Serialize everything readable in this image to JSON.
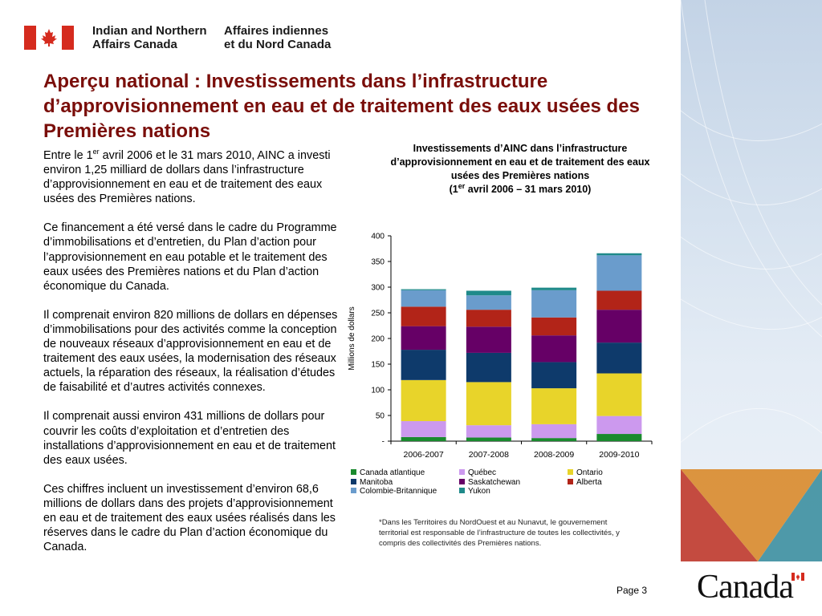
{
  "header": {
    "dept_en_line1": "Indian and Northern",
    "dept_en_line2": "Affairs Canada",
    "dept_fr_line1": "Affaires indiennes",
    "dept_fr_line2": "et du Nord Canada"
  },
  "title": "Aperçu national : Investissements dans l’infrastructure d’approvisionnement en eau et de traitement des eaux usées des Premières nations",
  "body": {
    "p1_a": "Entre le 1",
    "p1_sup": "er",
    "p1_b": " avril 2006 et le 31 mars 2010, AINC a investi environ 1,25 milliard de dollars dans l’infrastructure d’approvisionnement en eau et de traitement des eaux usées des Premières nations.",
    "p2": "Ce financement a été versé dans le cadre du Programme d’immobilisations et d’entretien, du Plan d’action pour l’approvisionnement en eau potable et le traitement des eaux usées des Premières nations et du Plan d’action économique du Canada.",
    "p3": "Il comprenait environ 820 millions de dollars en dépenses d’immobilisations pour des activités comme la conception de nouveaux réseaux d’approvisionnement en eau et de traitement des eaux usées, la modernisation des réseaux actuels, la réparation des réseaux, la réalisation d’études de faisabilité et d’autres activités connexes.",
    "p4": "Il comprenait aussi environ 431 millions de dollars pour couvrir les coûts d’exploitation et d’entretien des installations d’approvisionnement en eau et de traitement des eaux usées.",
    "p5": "Ces chiffres incluent un investissement d’environ 68,6 millions de dollars dans des projets d’approvisionnement en eau et de traitement des eaux usées réalisés dans les réserves dans le cadre du Plan d’action économique du Canada."
  },
  "chart_title": {
    "line1": "Investissements d’AINC dans l’infrastructure",
    "line2": "d’approvisionnement en eau et de traitement des eaux",
    "line3": "usées des Premières nations",
    "line4_a": "(1",
    "line4_sup": "er",
    "line4_b": " avril 2006 – 31 mars 2010)"
  },
  "chart_data": {
    "type": "bar",
    "stacked": true,
    "categories": [
      "2006-2007",
      "2007-2008",
      "2008-2009",
      "2009-2010"
    ],
    "ylabel": "Millions de dollars",
    "ylim": [
      0,
      400
    ],
    "yticks": [
      0,
      50,
      100,
      150,
      200,
      250,
      300,
      350,
      400
    ],
    "ytick_labels": [
      "-",
      "50",
      "100",
      "150",
      "200",
      "250",
      "300",
      "350",
      "400"
    ],
    "series": [
      {
        "name": "Canada atlantique",
        "color": "#1a8a2e",
        "values": [
          8,
          7,
          6,
          14
        ]
      },
      {
        "name": "Québec",
        "color": "#cc99ee",
        "values": [
          31,
          24,
          27,
          35
        ]
      },
      {
        "name": "Ontario",
        "color": "#e8d42a",
        "values": [
          80,
          84,
          70,
          83
        ]
      },
      {
        "name": "Manitoba",
        "color": "#0e3a6b",
        "values": [
          59,
          57,
          51,
          60
        ]
      },
      {
        "name": "Saskatchewan",
        "color": "#660066",
        "values": [
          46,
          51,
          52,
          64
        ]
      },
      {
        "name": "Alberta",
        "color": "#b22418",
        "values": [
          38,
          33,
          35,
          37
        ]
      },
      {
        "name": "Colombie-Britannique",
        "color": "#6a9ccc",
        "values": [
          32,
          28,
          53,
          69
        ]
      },
      {
        "name": "Yukon",
        "color": "#1f8a8a",
        "values": [
          2,
          9,
          5,
          4
        ]
      }
    ],
    "legend_position": "bottom"
  },
  "footnote": "*Dans les Territoires du NordOuest et au Nunavut, le gouvernement territorial est responsable de l’infrastructure de toutes les collectivités, y compris des collectivités des Premières nations.",
  "footer": {
    "page": "Page 3",
    "wordmark": "Canada"
  },
  "colors": {
    "title": "#7a0e0a",
    "flag_red": "#d52b1e",
    "deco_red": "#c0392b",
    "deco_orange": "#d98a2b",
    "deco_teal": "#3d8fa0"
  }
}
